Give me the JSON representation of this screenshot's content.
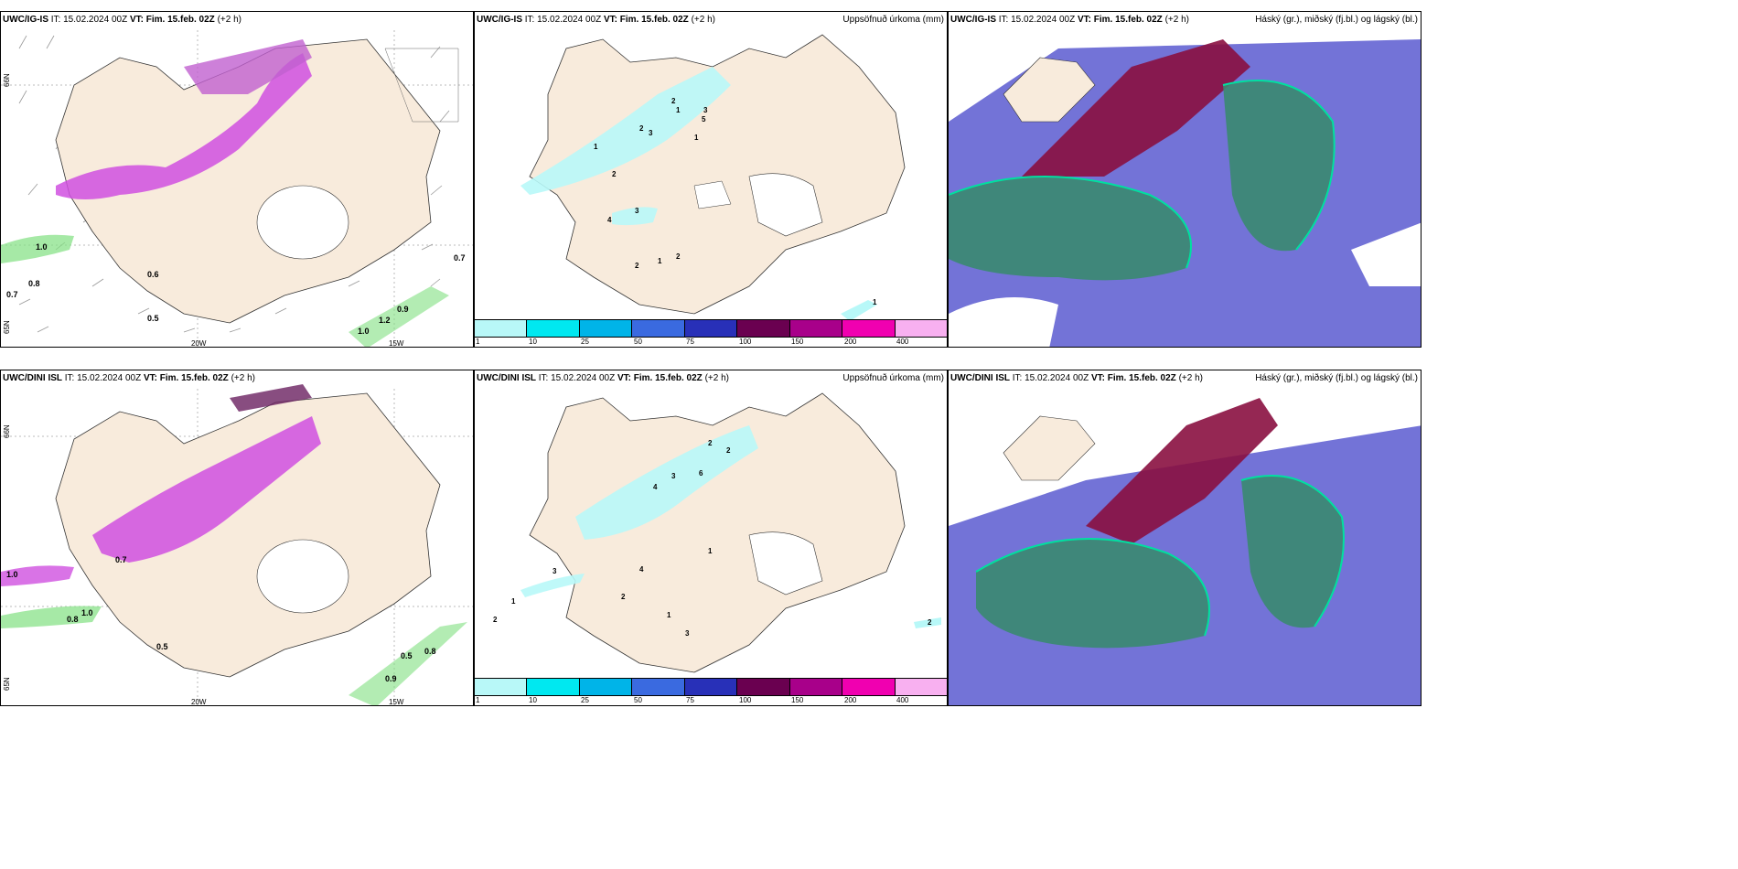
{
  "rows": [
    {
      "precip_title_model": "UWC/IG-IS",
      "panels": [
        {
          "model": "UWC/IG-IS",
          "it": "IT: 15.02.2024 00Z",
          "vt": "VT: Fim. 15.feb. 02Z",
          "lead": "(+2 h)",
          "right": ""
        },
        {
          "model": "UWC/IG-IS",
          "it": "IT: 15.02.2024 00Z",
          "vt": "VT: Fim. 15.feb. 02Z",
          "lead": "(+2 h)",
          "right": "Uppsöfnuð úrkoma (mm)"
        },
        {
          "model": "UWC/IG-IS",
          "it": "IT: 15.02.2024 00Z",
          "vt": "VT: Fim. 15.feb. 02Z",
          "lead": "(+2 h)",
          "right": "Háský (gr.), miðský (fj.bl.) og lágský (bl.)"
        }
      ]
    },
    {
      "panels": [
        {
          "model": "UWC/DINI ISL",
          "it": "IT: 15.02.2024 00Z",
          "vt": "VT: Fim. 15.feb. 02Z",
          "lead": "(+2 h)",
          "right": ""
        },
        {
          "model": "UWC/DINI ISL",
          "it": "IT: 15.02.2024 00Z",
          "vt": "VT: Fim. 15.feb. 02Z",
          "lead": "(+2 h)",
          "right": "Uppsöfnuð úrkoma (mm)"
        },
        {
          "model": "UWC/DINI ISL",
          "it": "IT: 15.02.2024 00Z",
          "vt": "VT: Fim. 15.feb. 02Z",
          "lead": "(+2 h)",
          "right": "Háský (gr.), miðský (fj.bl.) og lágský (bl.)"
        }
      ]
    }
  ],
  "axis_labels": {
    "lat66": "66N",
    "lat65": "65N",
    "lon20": "20W",
    "lon15": "15W"
  },
  "colorbar": {
    "colors": [
      "#b8f8f8",
      "#00e8f0",
      "#00b4e8",
      "#3a6ae0",
      "#2830b8",
      "#6a0050",
      "#a8008a",
      "#f000b0",
      "#f8b0f0"
    ],
    "ticks": [
      "1",
      "10",
      "25",
      "50",
      "75",
      "100",
      "150",
      "200",
      "400"
    ]
  },
  "colors": {
    "land": "#f8ebdc",
    "snow_precip": "#d050e0",
    "rain_precip": "#80e080",
    "precip_light": "#b8f8f8"
  },
  "wind_labels_top": [
    "1.0",
    "0.8",
    "0.7",
    "0.6",
    "0.5",
    "0.7",
    "0.9",
    "1.2",
    "1.0"
  ],
  "wind_labels_bottom": [
    "1.0",
    "0.7",
    "0.5",
    "0.8",
    "0.5",
    "0.8",
    "1.0",
    "0.9"
  ],
  "precip_labels_top": [
    "2",
    "1",
    "3",
    "5",
    "1",
    "2",
    "3",
    "1",
    "2",
    "4",
    "3",
    "2",
    "1",
    "2",
    "1"
  ],
  "precip_labels_bottom": [
    "2",
    "2",
    "4",
    "6",
    "3",
    "4",
    "2",
    "1",
    "3",
    "1",
    "2",
    "1",
    "3",
    "2"
  ]
}
